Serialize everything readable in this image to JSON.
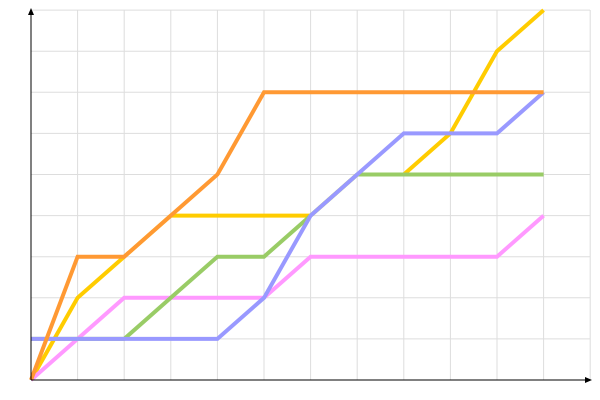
{
  "chart_data": {
    "type": "line",
    "title": "",
    "xlabel": "",
    "ylabel": "",
    "x": [
      0,
      1,
      2,
      3,
      4,
      5,
      6,
      7,
      8,
      9,
      10,
      11
    ],
    "xlim": [
      0,
      12.1
    ],
    "ylim": [
      0,
      9
    ],
    "grid": true,
    "legend": "none",
    "series": [
      {
        "color": "#ffcc00",
        "values": [
          0,
          2,
          3,
          4,
          4,
          4,
          4,
          5,
          5,
          6,
          8,
          9
        ]
      },
      {
        "color": "#ff99ff",
        "values": [
          0,
          1,
          2,
          2,
          2,
          2,
          3,
          3,
          3,
          3,
          3,
          4
        ]
      },
      {
        "color": "#99cc66",
        "values": [
          1,
          1,
          1,
          2,
          3,
          3,
          4,
          5,
          5,
          5,
          5,
          5
        ]
      },
      {
        "color": "#9999ff",
        "values": [
          1,
          1,
          1,
          1,
          1,
          2,
          4,
          5,
          6,
          6,
          6,
          7
        ]
      },
      {
        "color": "#ff9933",
        "values": [
          0,
          3,
          3,
          4,
          5,
          7,
          7,
          7,
          7,
          7,
          7,
          7
        ]
      }
    ]
  }
}
